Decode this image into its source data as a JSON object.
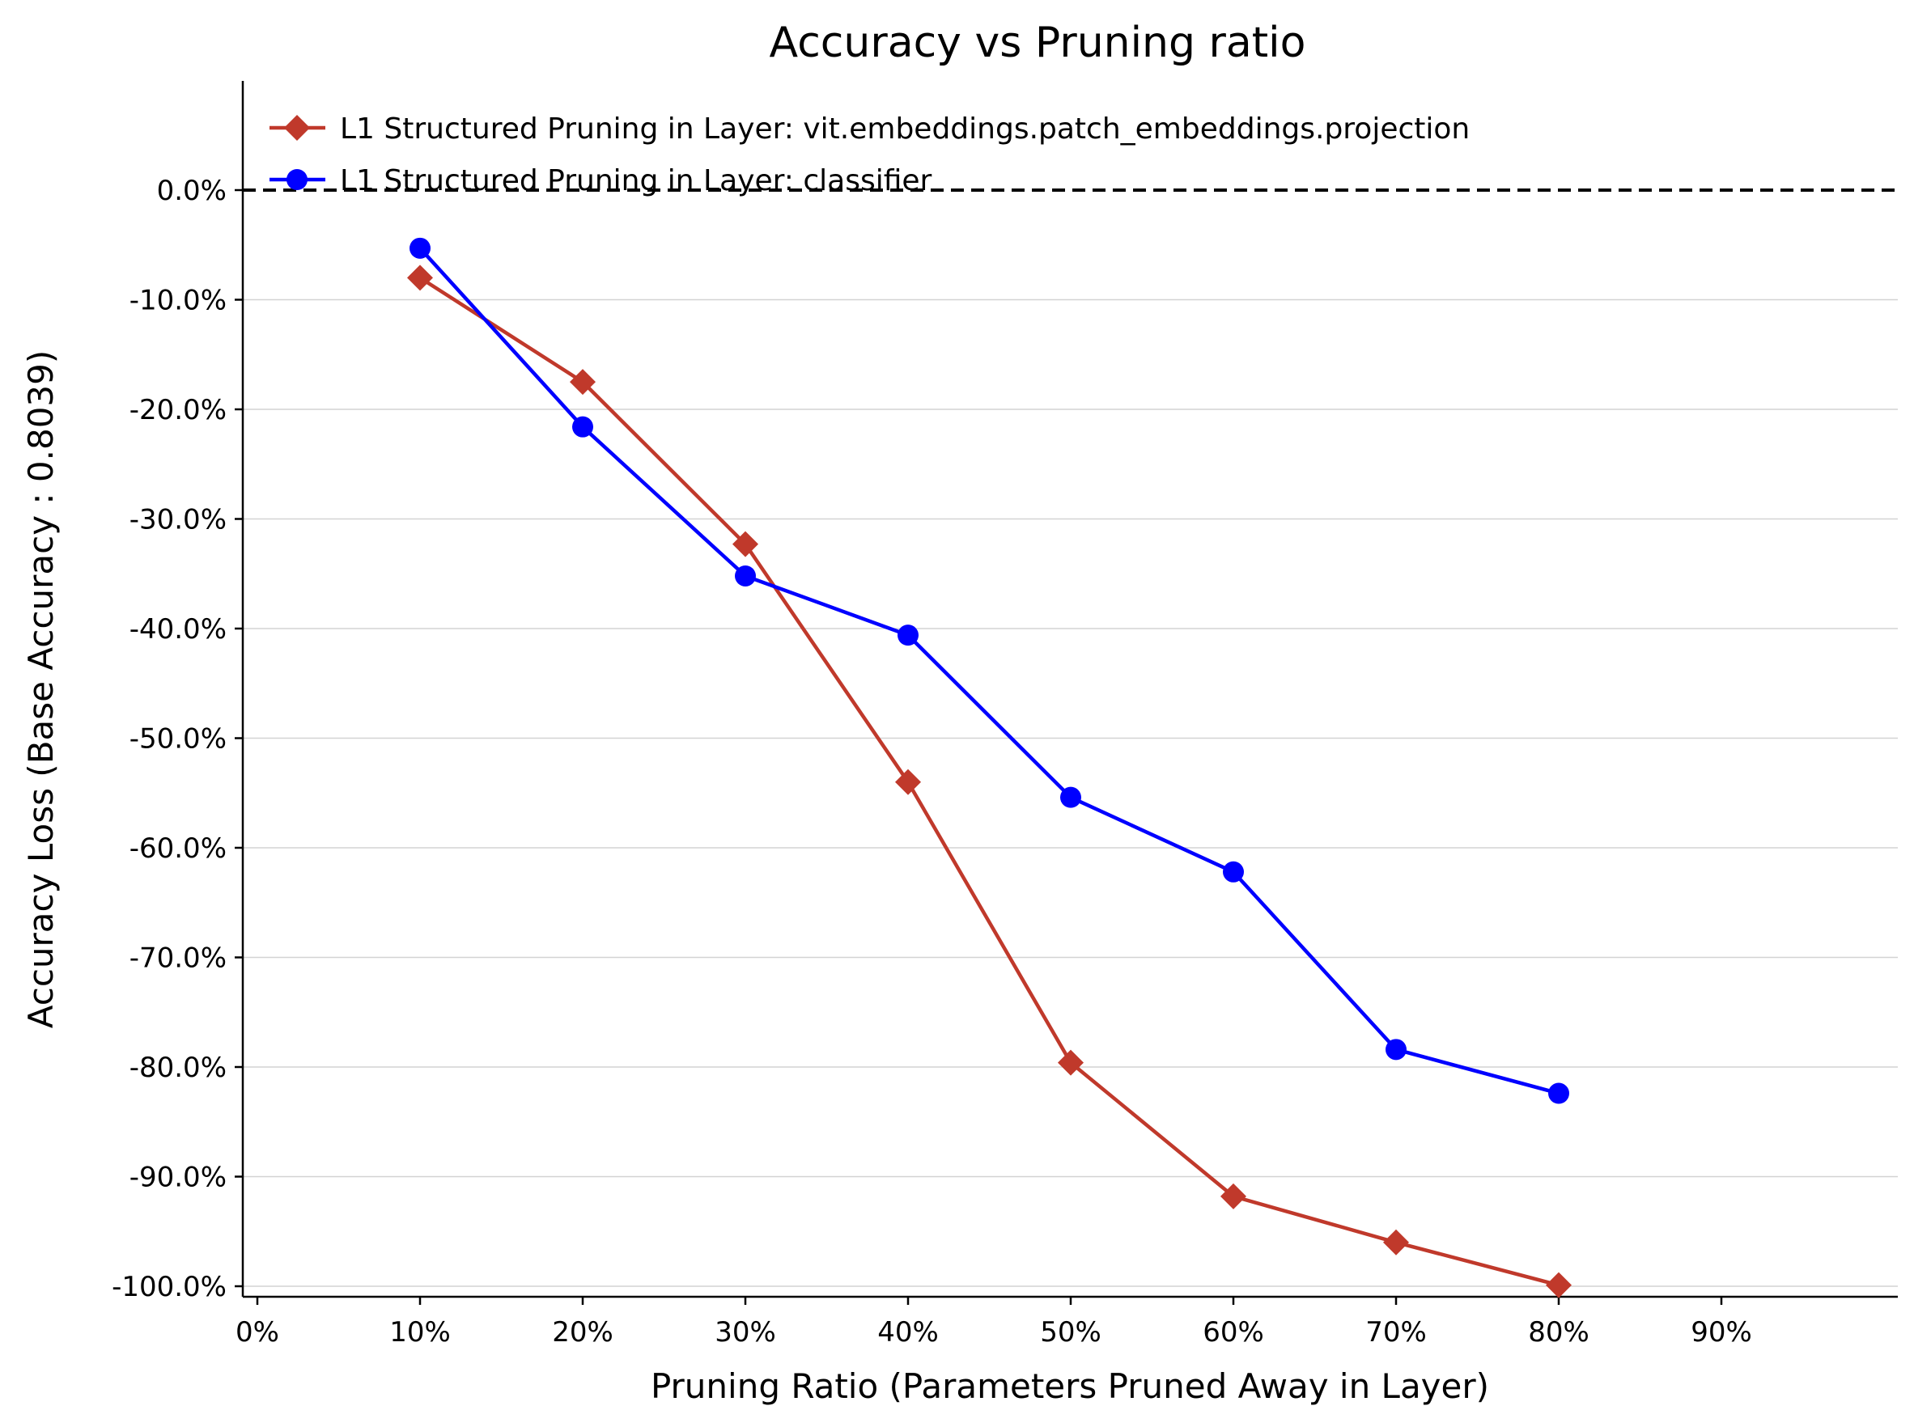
{
  "chart_data": {
    "type": "line",
    "title": "Accuracy vs Pruning ratio",
    "xlabel": "Pruning Ratio (Parameters Pruned Away in Layer)",
    "ylabel": "Accuracy Loss (Base Accuracy : 0.8039)",
    "x": [
      10,
      20,
      30,
      40,
      50,
      60,
      70,
      80
    ],
    "xlim": [
      -1,
      101
    ],
    "ylim": [
      -101,
      10
    ],
    "x_ticks": [
      0,
      10,
      20,
      30,
      40,
      50,
      60,
      70,
      80,
      90
    ],
    "x_tick_labels": [
      "0%",
      "10%",
      "20%",
      "30%",
      "40%",
      "50%",
      "60%",
      "70%",
      "80%",
      "90%"
    ],
    "y_ticks": [
      0,
      -10,
      -20,
      -30,
      -40,
      -50,
      -60,
      -70,
      -80,
      -90,
      -100
    ],
    "y_tick_labels": [
      "0.0%",
      "-10.0%",
      "-20.0%",
      "-30.0%",
      "-40.0%",
      "-50.0%",
      "-60.0%",
      "-70.0%",
      "-80.0%",
      "-90.0%",
      "-100.0%"
    ],
    "grid": "horizontal",
    "reference_line": {
      "y": 0,
      "style": "dashed",
      "color": "#000000"
    },
    "legend_position": "top-left",
    "series": [
      {
        "name": "L1 Structured Pruning in Layer: vit.embeddings.patch_embeddings.projection",
        "color": "#c0392b",
        "marker": "diamond",
        "values": [
          -8.0,
          -17.5,
          -32.3,
          -54.0,
          -79.6,
          -91.8,
          -96.0,
          -99.9
        ]
      },
      {
        "name": "L1 Structured Pruning in Layer: classifier",
        "color": "#0000ff",
        "marker": "circle",
        "values": [
          -5.3,
          -21.6,
          -35.2,
          -40.6,
          -55.4,
          -62.2,
          -78.4,
          -82.4
        ]
      }
    ]
  }
}
